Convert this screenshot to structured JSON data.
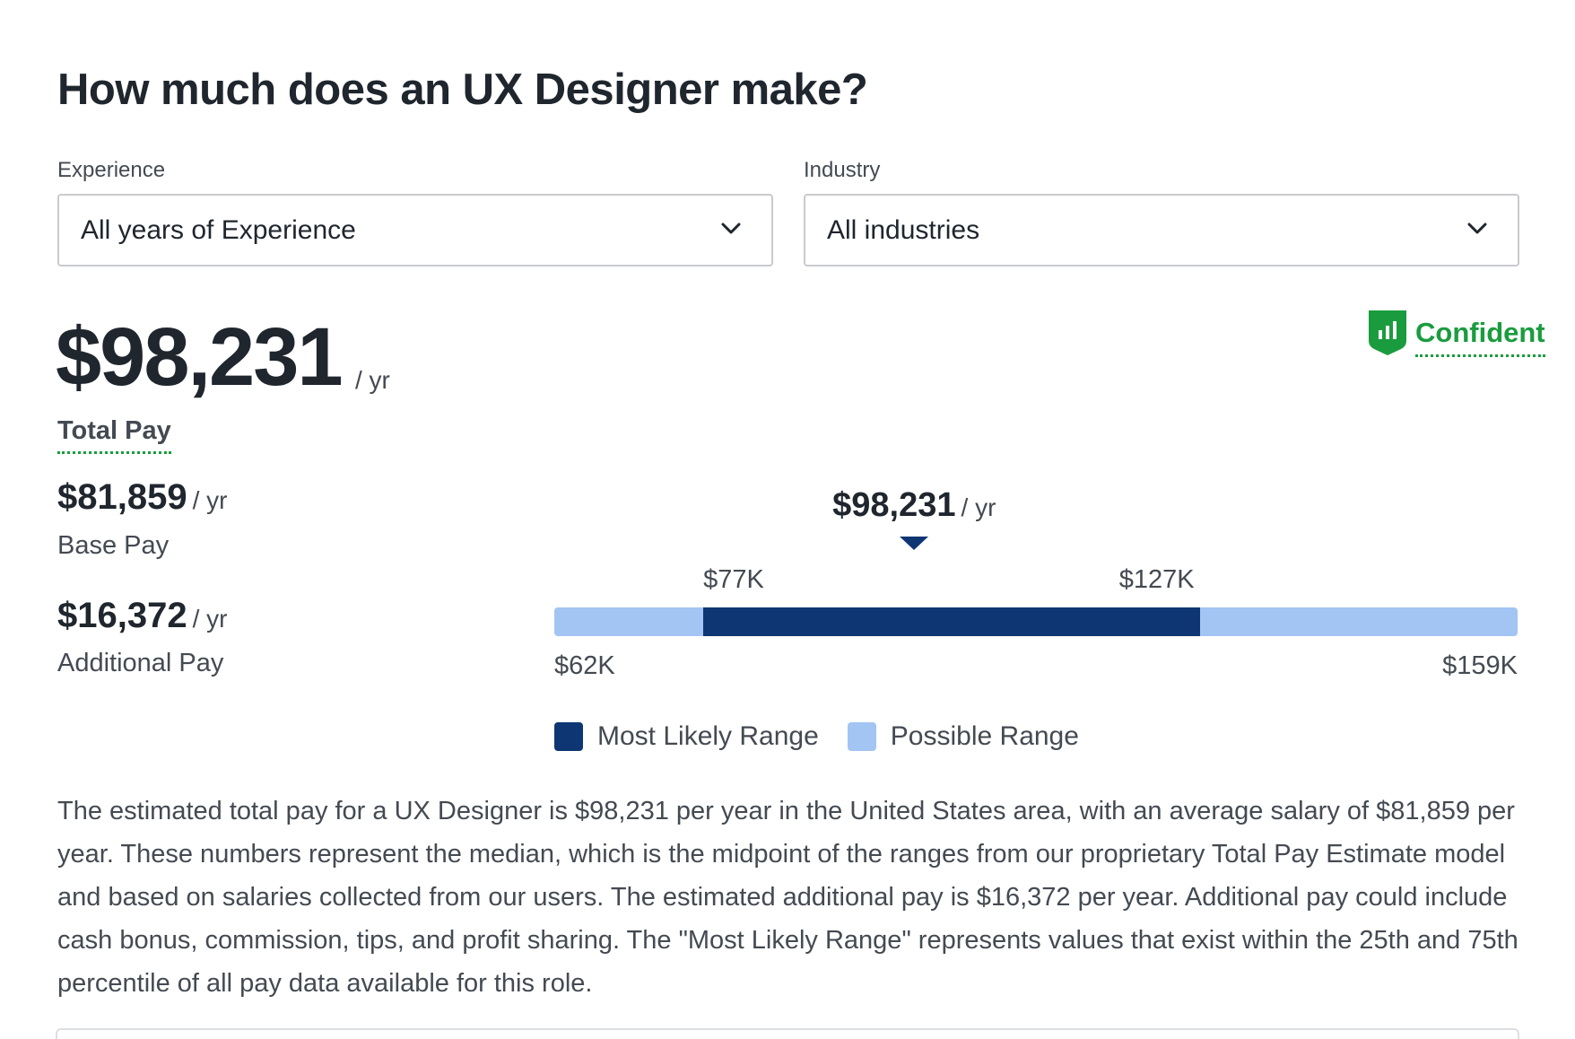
{
  "title": "How much does an UX Designer make?",
  "filters": {
    "experience": {
      "label": "Experience",
      "value": "All years of Experience"
    },
    "industry": {
      "label": "Industry",
      "value": "All industries"
    }
  },
  "confidence": {
    "label": "Confident",
    "icon": "bar-chart-shield-icon"
  },
  "total_pay": {
    "amount": "$98,231",
    "per": "/ yr",
    "label": "Total Pay"
  },
  "base_pay": {
    "amount": "$81,859",
    "per": "/ yr",
    "label": "Base Pay"
  },
  "additional_pay": {
    "amount": "$16,372",
    "per": "/ yr",
    "label": "Additional Pay"
  },
  "chart_data": {
    "type": "range",
    "min": 62,
    "max": 159,
    "min_label": "$62K",
    "max_label": "$159K",
    "likely_low": 77,
    "likely_high": 127,
    "likely_low_label": "$77K",
    "likely_high_label": "$127K",
    "median": 98.231,
    "median_label": "$98,231",
    "median_per": "/ yr",
    "legend": [
      {
        "name": "Most Likely Range",
        "color": "#0e3673"
      },
      {
        "name": "Possible Range",
        "color": "#a3c5f4"
      }
    ]
  },
  "description": "The estimated total pay for a UX Designer is $98,231 per year in the United States area, with an average salary of $81,859 per year. These numbers represent the median, which is the midpoint of the ranges from our proprietary Total Pay Estimate model and based on salaries collected from our users. The estimated additional pay is $16,372 per year. Additional pay could include cash bonus, commission, tips, and profit sharing. The \"Most Likely Range\" represents values that exist within the 25th and 75th percentile of all pay data available for this role."
}
